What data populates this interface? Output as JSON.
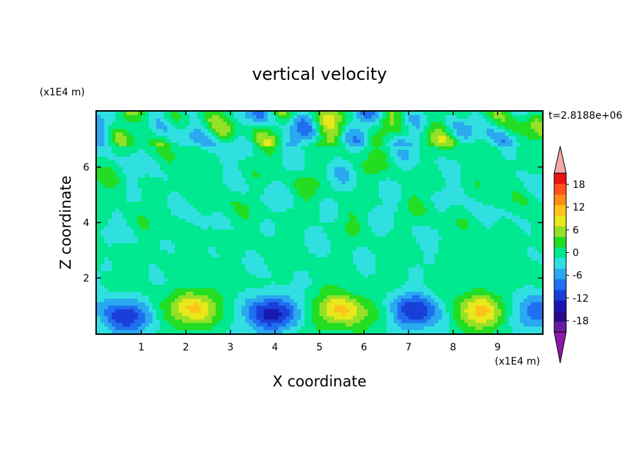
{
  "chart_data": {
    "type": "heatmap",
    "title": "vertical velocity",
    "xlabel": "X coordinate",
    "ylabel": "Z coordinate",
    "x_unit": "(x1E4 m)",
    "y_unit": "(x1E4 m)",
    "time_label": "t=2.8188e+06",
    "xlim": [
      0,
      10
    ],
    "ylim": [
      0,
      8
    ],
    "x_ticks": [
      1,
      2,
      3,
      4,
      5,
      6,
      7,
      8,
      9
    ],
    "y_ticks": [
      2,
      4,
      6
    ],
    "colorbar": {
      "levels": [
        -21,
        -18,
        -15,
        -12,
        -9,
        -6,
        -3,
        0,
        3,
        6,
        9,
        12,
        15,
        18,
        21
      ],
      "tick_labels": [
        18,
        12,
        6,
        0,
        -6,
        -12,
        -18
      ],
      "colors": [
        "#6a1aa0",
        "#2a0a88",
        "#1818b0",
        "#1840d8",
        "#1f6ff0",
        "#2aa8f0",
        "#30e0e0",
        "#00e890",
        "#22dd22",
        "#96e028",
        "#e8e81a",
        "#ffc21a",
        "#ff8c14",
        "#ff501e",
        "#e61414"
      ],
      "over_color": "#f2a8a8",
      "under_color": "#8c1aa8"
    },
    "features": [
      {
        "kind": "updraft",
        "x": 2.2,
        "z": 0.9,
        "peak": 12
      },
      {
        "kind": "downdraft",
        "x": 0.6,
        "z": 0.6,
        "peak": -12
      },
      {
        "kind": "downdraft",
        "x": 3.9,
        "z": 0.7,
        "peak": -15
      },
      {
        "kind": "updraft",
        "x": 5.5,
        "z": 0.8,
        "peak": 12
      },
      {
        "kind": "downdraft",
        "x": 7.2,
        "z": 0.8,
        "peak": -12
      },
      {
        "kind": "updraft",
        "x": 8.6,
        "z": 0.8,
        "peak": 12
      },
      {
        "kind": "downdraft",
        "x": 9.9,
        "z": 0.8,
        "peak": -9
      }
    ]
  }
}
